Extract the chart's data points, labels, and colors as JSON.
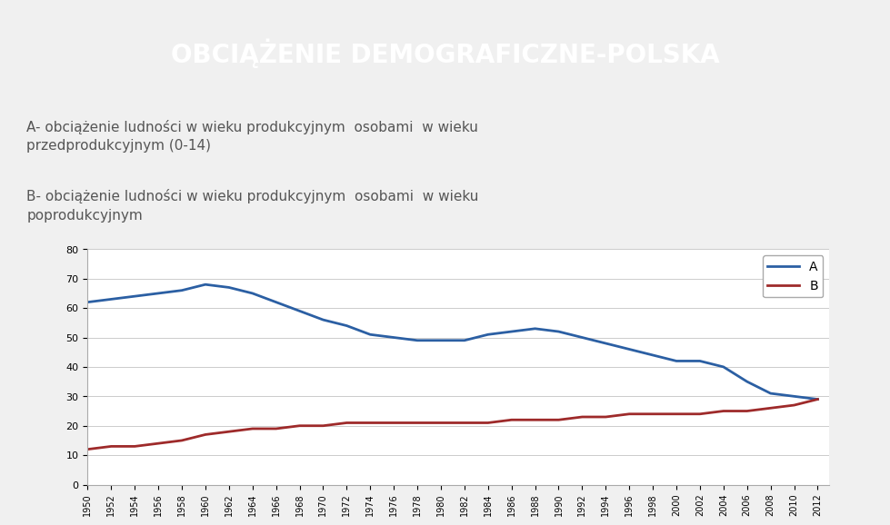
{
  "title": "OBCIĄŻENIE DEMOGRAFICZNE-POLSKA",
  "title_bg": "#5a6a80",
  "title_color": "#ffffff",
  "text_bg": "#f0f0f0",
  "label_A": "A- obciążenie ludności w wieku produkcyjnym  osobami  w wieku\nprzedprodukcyjnym (0-14)",
  "label_B": "B- obciążenie ludności w wieku produkcyjnym  osobami  w wieku\npoprodukcyjnym",
  "years": [
    1950,
    1952,
    1954,
    1956,
    1958,
    1960,
    1962,
    1964,
    1966,
    1968,
    1970,
    1972,
    1974,
    1976,
    1978,
    1980,
    1982,
    1984,
    1986,
    1988,
    1990,
    1992,
    1994,
    1996,
    1998,
    2000,
    2002,
    2004,
    2006,
    2008,
    2010,
    2012
  ],
  "series_A": [
    62,
    63,
    64,
    65,
    66,
    68,
    67,
    65,
    62,
    59,
    56,
    54,
    51,
    50,
    49,
    49,
    49,
    51,
    52,
    53,
    52,
    50,
    48,
    46,
    44,
    42,
    42,
    40,
    35,
    31,
    30,
    29
  ],
  "series_B": [
    12,
    13,
    13,
    14,
    15,
    17,
    18,
    19,
    19,
    20,
    20,
    21,
    21,
    21,
    21,
    21,
    21,
    21,
    22,
    22,
    22,
    23,
    23,
    24,
    24,
    24,
    24,
    25,
    25,
    26,
    27,
    29
  ],
  "color_A": "#2b5fa3",
  "color_B": "#9e2a2a",
  "chart_bg": "#ffffff",
  "chart_border": "#ffff00",
  "ylim": [
    0,
    80
  ],
  "yticks": [
    0,
    10,
    20,
    30,
    40,
    50,
    60,
    70,
    80
  ],
  "legend_A": "A",
  "legend_B": "B"
}
